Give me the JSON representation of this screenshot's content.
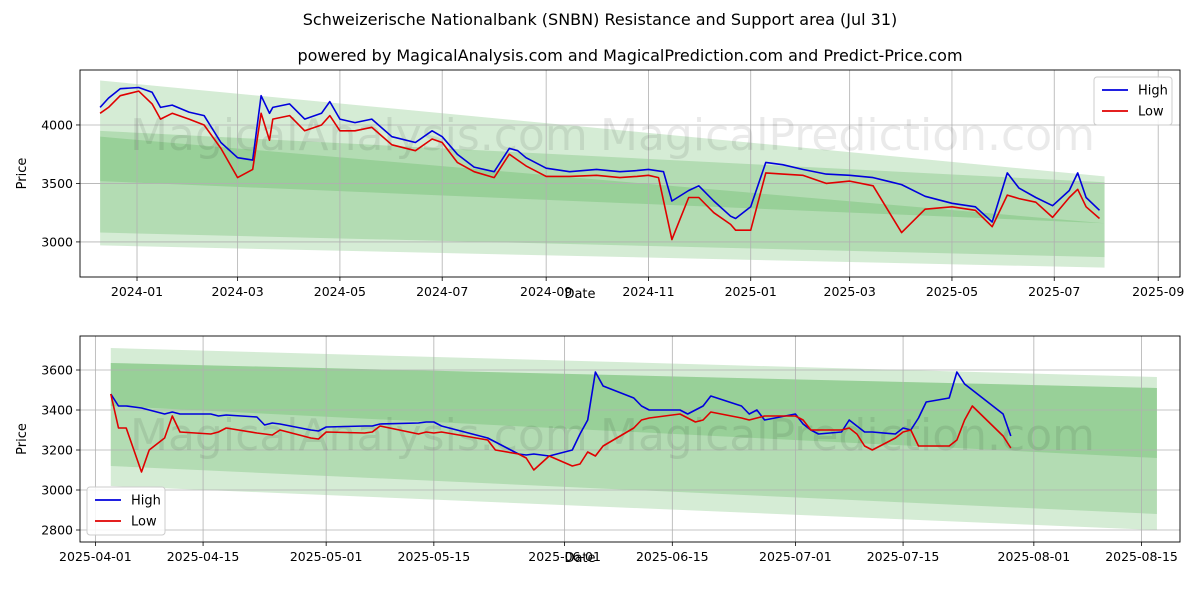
{
  "title": "Schweizerische Nationalbank (SNBN) Resistance and Support area (Jul 31)",
  "subtitle": "powered by MagicalAnalysis.com and MagicalPrediction.com and Predict-Price.com",
  "watermarks": [
    "MagicalAnalysis.com",
    "MagicalPrediction.com"
  ],
  "colors": {
    "high": "#0000dd",
    "low": "#e00000",
    "band": "#2ca02c"
  },
  "chart_data": [
    {
      "type": "line",
      "xlabel": "Date",
      "ylabel": "Price",
      "grid": true,
      "legend": "top-right",
      "xlim": [
        "2023-11-28",
        "2025-09-14"
      ],
      "ylim": [
        2700,
        4470
      ],
      "x_ticks": [
        "2024-01",
        "2024-03",
        "2024-05",
        "2024-07",
        "2024-09",
        "2024-11",
        "2025-01",
        "2025-03",
        "2025-05",
        "2025-07",
        "2025-09"
      ],
      "x_tick_dates": [
        "2024-01-01",
        "2024-03-01",
        "2024-05-01",
        "2024-07-01",
        "2024-09-01",
        "2024-11-01",
        "2025-01-01",
        "2025-03-01",
        "2025-05-01",
        "2025-07-01",
        "2025-09-01"
      ],
      "y_ticks": [
        3000,
        3500,
        4000
      ],
      "bands": [
        {
          "x": [
            "2023-12-10",
            "2025-07-31"
          ],
          "upper": [
            4380,
            3560
          ],
          "lower": [
            2970,
            2780
          ],
          "opacity": 0.2
        },
        {
          "x": [
            "2023-12-10",
            "2025-07-31"
          ],
          "upper": [
            3950,
            3510
          ],
          "lower": [
            3080,
            2870
          ],
          "opacity": 0.2
        },
        {
          "x": [
            "2023-12-10",
            "2025-07-31"
          ],
          "upper": [
            3900,
            3160
          ],
          "lower": [
            3520,
            3160
          ],
          "opacity": 0.2
        }
      ],
      "series": [
        {
          "name": "High",
          "x": [
            "2023-12-10",
            "2023-12-15",
            "2023-12-22",
            "2024-01-02",
            "2024-01-10",
            "2024-01-15",
            "2024-01-22",
            "2024-02-01",
            "2024-02-10",
            "2024-02-20",
            "2024-03-01",
            "2024-03-10",
            "2024-03-15",
            "2024-03-20",
            "2024-03-22",
            "2024-04-01",
            "2024-04-10",
            "2024-04-20",
            "2024-04-25",
            "2024-05-01",
            "2024-05-10",
            "2024-05-20",
            "2024-06-01",
            "2024-06-15",
            "2024-06-25",
            "2024-07-01",
            "2024-07-10",
            "2024-07-20",
            "2024-08-01",
            "2024-08-10",
            "2024-08-15",
            "2024-08-20",
            "2024-09-01",
            "2024-09-15",
            "2024-10-01",
            "2024-10-15",
            "2024-10-25",
            "2024-11-01",
            "2024-11-10",
            "2024-11-15",
            "2024-11-25",
            "2024-12-01",
            "2024-12-10",
            "2024-12-20",
            "2024-12-23",
            "2025-01-01",
            "2025-01-10",
            "2025-01-20",
            "2025-02-01",
            "2025-02-15",
            "2025-03-01",
            "2025-03-15",
            "2025-04-01",
            "2025-04-15",
            "2025-05-01",
            "2025-05-15",
            "2025-05-25",
            "2025-06-03",
            "2025-06-10",
            "2025-06-20",
            "2025-06-30",
            "2025-07-10",
            "2025-07-15",
            "2025-07-20",
            "2025-07-28"
          ],
          "values": [
            4150,
            4230,
            4310,
            4320,
            4280,
            4150,
            4170,
            4110,
            4080,
            3850,
            3720,
            3700,
            4250,
            4100,
            4150,
            4180,
            4050,
            4100,
            4200,
            4050,
            4020,
            4050,
            3900,
            3850,
            3950,
            3900,
            3750,
            3640,
            3600,
            3800,
            3780,
            3720,
            3630,
            3600,
            3620,
            3600,
            3610,
            3620,
            3600,
            3350,
            3440,
            3480,
            3350,
            3220,
            3200,
            3300,
            3680,
            3660,
            3620,
            3580,
            3570,
            3550,
            3490,
            3390,
            3330,
            3300,
            3170,
            3590,
            3460,
            3380,
            3310,
            3440,
            3590,
            3380,
            3270
          ]
        },
        {
          "name": "Low",
          "x": [
            "2023-12-10",
            "2023-12-15",
            "2023-12-22",
            "2024-01-02",
            "2024-01-10",
            "2024-01-15",
            "2024-01-22",
            "2024-02-01",
            "2024-02-10",
            "2024-02-20",
            "2024-03-01",
            "2024-03-10",
            "2024-03-15",
            "2024-03-20",
            "2024-03-22",
            "2024-04-01",
            "2024-04-10",
            "2024-04-20",
            "2024-04-25",
            "2024-05-01",
            "2024-05-10",
            "2024-05-20",
            "2024-06-01",
            "2024-06-15",
            "2024-06-25",
            "2024-07-01",
            "2024-07-10",
            "2024-07-20",
            "2024-08-01",
            "2024-08-10",
            "2024-08-15",
            "2024-08-20",
            "2024-09-01",
            "2024-09-15",
            "2024-10-01",
            "2024-10-15",
            "2024-10-25",
            "2024-11-01",
            "2024-11-07",
            "2024-11-15",
            "2024-11-25",
            "2024-12-01",
            "2024-12-10",
            "2024-12-20",
            "2024-12-23",
            "2025-01-01",
            "2025-01-10",
            "2025-01-20",
            "2025-02-01",
            "2025-02-15",
            "2025-03-01",
            "2025-03-15",
            "2025-04-01",
            "2025-04-15",
            "2025-05-01",
            "2025-05-15",
            "2025-05-25",
            "2025-06-03",
            "2025-06-10",
            "2025-06-20",
            "2025-06-30",
            "2025-07-10",
            "2025-07-15",
            "2025-07-20",
            "2025-07-28"
          ],
          "values": [
            4100,
            4150,
            4250,
            4290,
            4180,
            4050,
            4100,
            4050,
            4000,
            3800,
            3550,
            3620,
            4100,
            3870,
            4050,
            4080,
            3950,
            4000,
            4080,
            3950,
            3950,
            3980,
            3830,
            3780,
            3880,
            3850,
            3680,
            3600,
            3550,
            3750,
            3700,
            3650,
            3560,
            3560,
            3570,
            3550,
            3560,
            3570,
            3550,
            3020,
            3380,
            3380,
            3250,
            3150,
            3100,
            3100,
            3590,
            3580,
            3570,
            3500,
            3520,
            3480,
            3080,
            3280,
            3300,
            3270,
            3130,
            3400,
            3370,
            3340,
            3210,
            3380,
            3450,
            3300,
            3200
          ]
        }
      ]
    },
    {
      "type": "line",
      "xlabel": "Date",
      "ylabel": "Price",
      "grid": true,
      "legend": "bottom-left",
      "xlim": [
        "2025-03-30",
        "2025-08-20"
      ],
      "ylim": [
        2740,
        3770
      ],
      "x_ticks": [
        "2025-04-01",
        "2025-04-15",
        "2025-05-01",
        "2025-05-15",
        "2025-06-01",
        "2025-06-15",
        "2025-07-01",
        "2025-07-15",
        "2025-08-01",
        "2025-08-15"
      ],
      "y_ticks": [
        2800,
        3000,
        3200,
        3400,
        3600
      ],
      "bands": [
        {
          "x": [
            "2025-04-03",
            "2025-08-17"
          ],
          "upper": [
            3710,
            3565
          ],
          "lower": [
            3020,
            2800
          ],
          "opacity": 0.2
        },
        {
          "x": [
            "2025-04-03",
            "2025-08-17"
          ],
          "upper": [
            3635,
            3510
          ],
          "lower": [
            3120,
            2880
          ],
          "opacity": 0.2
        },
        {
          "x": [
            "2025-04-03",
            "2025-08-17"
          ],
          "upper": [
            3635,
            3510
          ],
          "lower": [
            3420,
            3160
          ],
          "opacity": 0.2
        }
      ],
      "series": [
        {
          "name": "High",
          "x": [
            "2025-04-03",
            "2025-04-04",
            "2025-04-05",
            "2025-04-07",
            "2025-04-10",
            "2025-04-11",
            "2025-04-12",
            "2025-04-16",
            "2025-04-17",
            "2025-04-18",
            "2025-04-22",
            "2025-04-23",
            "2025-04-24",
            "2025-04-25",
            "2025-04-29",
            "2025-04-30",
            "2025-05-01",
            "2025-05-06",
            "2025-05-07",
            "2025-05-08",
            "2025-05-13",
            "2025-05-14",
            "2025-05-15",
            "2025-05-16",
            "2025-05-22",
            "2025-05-23",
            "2025-05-26",
            "2025-05-27",
            "2025-05-28",
            "2025-05-30",
            "2025-06-02",
            "2025-06-03",
            "2025-06-04",
            "2025-06-05",
            "2025-06-06",
            "2025-06-10",
            "2025-06-11",
            "2025-06-12",
            "2025-06-16",
            "2025-06-17",
            "2025-06-18",
            "2025-06-19",
            "2025-06-20",
            "2025-06-24",
            "2025-06-25",
            "2025-06-26",
            "2025-06-27",
            "2025-07-01",
            "2025-07-02",
            "2025-07-03",
            "2025-07-04",
            "2025-07-07",
            "2025-07-08",
            "2025-07-09",
            "2025-07-10",
            "2025-07-11",
            "2025-07-14",
            "2025-07-15",
            "2025-07-16",
            "2025-07-17",
            "2025-07-18",
            "2025-07-21",
            "2025-07-22",
            "2025-07-23",
            "2025-07-24",
            "2025-07-28",
            "2025-07-29"
          ],
          "values": [
            3480,
            3420,
            3420,
            3410,
            3380,
            3390,
            3380,
            3380,
            3370,
            3375,
            3365,
            3325,
            3335,
            3330,
            3300,
            3295,
            3315,
            3320,
            3320,
            3330,
            3335,
            3340,
            3340,
            3320,
            3260,
            3240,
            3180,
            3175,
            3180,
            3170,
            3200,
            3280,
            3350,
            3590,
            3520,
            3460,
            3420,
            3400,
            3400,
            3380,
            3400,
            3420,
            3470,
            3420,
            3380,
            3400,
            3350,
            3380,
            3330,
            3300,
            3280,
            3290,
            3350,
            3320,
            3290,
            3290,
            3280,
            3310,
            3300,
            3360,
            3440,
            3460,
            3590,
            3530,
            3500,
            3380,
            3270
          ]
        },
        {
          "name": "Low",
          "x": [
            "2025-04-03",
            "2025-04-04",
            "2025-04-05",
            "2025-04-07",
            "2025-04-08",
            "2025-04-10",
            "2025-04-11",
            "2025-04-12",
            "2025-04-16",
            "2025-04-17",
            "2025-04-18",
            "2025-04-22",
            "2025-04-23",
            "2025-04-24",
            "2025-04-25",
            "2025-04-29",
            "2025-04-30",
            "2025-05-01",
            "2025-05-06",
            "2025-05-07",
            "2025-05-08",
            "2025-05-13",
            "2025-05-14",
            "2025-05-15",
            "2025-05-16",
            "2025-05-22",
            "2025-05-23",
            "2025-05-26",
            "2025-05-27",
            "2025-05-28",
            "2025-05-30",
            "2025-06-02",
            "2025-06-03",
            "2025-06-04",
            "2025-06-05",
            "2025-06-06",
            "2025-06-10",
            "2025-06-11",
            "2025-06-12",
            "2025-06-16",
            "2025-06-17",
            "2025-06-18",
            "2025-06-19",
            "2025-06-20",
            "2025-06-24",
            "2025-06-25",
            "2025-06-26",
            "2025-06-27",
            "2025-07-01",
            "2025-07-02",
            "2025-07-03",
            "2025-07-04",
            "2025-07-07",
            "2025-07-08",
            "2025-07-09",
            "2025-07-10",
            "2025-07-11",
            "2025-07-14",
            "2025-07-15",
            "2025-07-16",
            "2025-07-17",
            "2025-07-18",
            "2025-07-21",
            "2025-07-22",
            "2025-07-23",
            "2025-07-24",
            "2025-07-28",
            "2025-07-29"
          ],
          "values": [
            3480,
            3310,
            3310,
            3090,
            3200,
            3260,
            3370,
            3290,
            3280,
            3290,
            3310,
            3285,
            3280,
            3275,
            3300,
            3260,
            3255,
            3290,
            3285,
            3290,
            3320,
            3280,
            3290,
            3285,
            3290,
            3250,
            3200,
            3180,
            3160,
            3100,
            3170,
            3120,
            3130,
            3190,
            3170,
            3220,
            3310,
            3350,
            3360,
            3380,
            3360,
            3340,
            3350,
            3390,
            3360,
            3350,
            3360,
            3370,
            3370,
            3350,
            3300,
            3300,
            3300,
            3310,
            3280,
            3220,
            3200,
            3260,
            3290,
            3300,
            3220,
            3220,
            3220,
            3250,
            3350,
            3420,
            3270,
            3210
          ]
        }
      ]
    }
  ]
}
